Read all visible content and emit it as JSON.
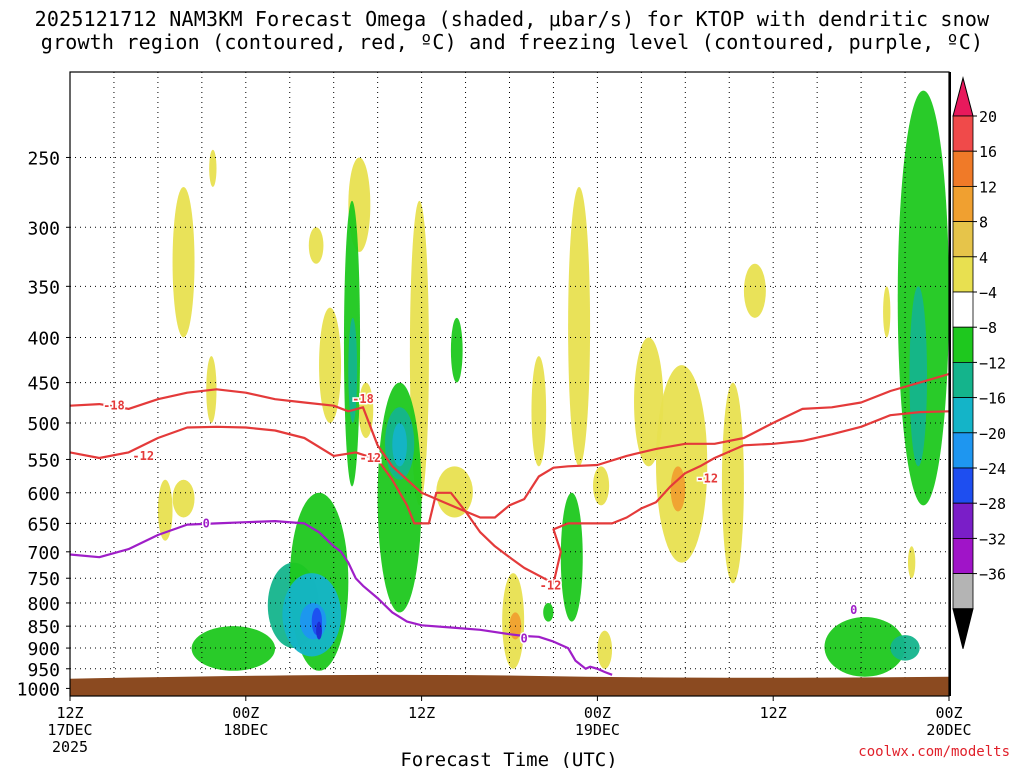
{
  "title": {
    "line1": "2025121712 NAM3KM Forecast Omega (shaded, μbar/s) for KTOP with dendritic snow",
    "line2": "growth region (contoured, red, ºC) and freezing level (contoured, purple, ºC)"
  },
  "credit": "coolwx.com/modelts",
  "chart_data": {
    "type": "heatmap",
    "title": "2025121712 NAM3KM Forecast Omega (shaded, μbar/s) for KTOP with dendritic snow growth region (contoured, red, ºC) and freezing level (contoured, purple, ºC)",
    "xlabel": "Forecast Time (UTC)",
    "ylabel": "",
    "x_range_hours": [
      0,
      60
    ],
    "y_scale": "log-pressure",
    "y_range_hPa": [
      1020,
      200
    ],
    "y_ticks": [
      "250",
      "300",
      "350",
      "400",
      "450",
      "500",
      "550",
      "600",
      "650",
      "700",
      "750",
      "800",
      "850",
      "900",
      "950",
      "1000"
    ],
    "x_ticks": [
      {
        "hour": 0,
        "line1": "12Z",
        "line2": "17DEC",
        "line3": "2025"
      },
      {
        "hour": 12,
        "line1": "00Z",
        "line2": "18DEC",
        "line3": ""
      },
      {
        "hour": 24,
        "line1": "12Z",
        "line2": "",
        "line3": ""
      },
      {
        "hour": 36,
        "line1": "00Z",
        "line2": "19DEC",
        "line3": ""
      },
      {
        "hour": 48,
        "line1": "12Z",
        "line2": "",
        "line3": ""
      },
      {
        "hour": 60,
        "line1": "00Z",
        "line2": "20DEC",
        "line3": ""
      }
    ],
    "grid": true,
    "colorbar": {
      "labels": [
        "20",
        "16",
        "12",
        "8",
        "4",
        "−4",
        "−8",
        "−12",
        "−16",
        "−20",
        "−24",
        "−28",
        "−32",
        "−36"
      ],
      "colors": [
        "#e8195c",
        "#f04a4a",
        "#f07a28",
        "#f0a030",
        "#e6c44a",
        "#e8e050",
        "#ffffff",
        "#1ec81e",
        "#14b48c",
        "#14b4c8",
        "#1e96f0",
        "#1e4ef0",
        "#7a1ec8",
        "#a014c8",
        "#b4b4b4",
        "#000000"
      ]
    },
    "omega_areas": [
      {
        "level": 4,
        "t": [
          6,
          7
        ],
        "p": [
          580,
          680
        ]
      },
      {
        "level": 4,
        "t": [
          7,
          8.5
        ],
        "p": [
          580,
          640
        ]
      },
      {
        "level": 4,
        "t": [
          7,
          8.5
        ],
        "p": [
          270,
          400
        ]
      },
      {
        "level": 4,
        "t": [
          9.5,
          10
        ],
        "p": [
          245,
          270
        ]
      },
      {
        "level": 4,
        "t": [
          9.3,
          10
        ],
        "p": [
          420,
          500
        ]
      },
      {
        "level": 4,
        "t": [
          16.3,
          17.3
        ],
        "p": [
          300,
          330
        ]
      },
      {
        "level": 4,
        "t": [
          17,
          18.5
        ],
        "p": [
          370,
          500
        ]
      },
      {
        "level": 4,
        "t": [
          19,
          20.5
        ],
        "p": [
          250,
          320
        ]
      },
      {
        "level": 4,
        "t": [
          19.7,
          20.7
        ],
        "p": [
          450,
          520
        ]
      },
      {
        "level": 4,
        "t": [
          23.2,
          24.5
        ],
        "p": [
          280,
          620
        ]
      },
      {
        "level": 4,
        "t": [
          25,
          27.5
        ],
        "p": [
          560,
          640
        ]
      },
      {
        "level": 4,
        "t": [
          29.5,
          31
        ],
        "p": [
          740,
          950
        ]
      },
      {
        "level": 8,
        "t": [
          30,
          30.8
        ],
        "p": [
          820,
          880
        ]
      },
      {
        "level": 4,
        "t": [
          31.5,
          32.5
        ],
        "p": [
          420,
          560
        ]
      },
      {
        "level": 4,
        "t": [
          34,
          35.5
        ],
        "p": [
          270,
          560
        ]
      },
      {
        "level": 4,
        "t": [
          35.7,
          36.8
        ],
        "p": [
          560,
          620
        ]
      },
      {
        "level": 4,
        "t": [
          36,
          37
        ],
        "p": [
          860,
          950
        ]
      },
      {
        "level": 4,
        "t": [
          38.5,
          40.5
        ],
        "p": [
          400,
          560
        ]
      },
      {
        "level": 4,
        "t": [
          40,
          43.5
        ],
        "p": [
          430,
          720
        ]
      },
      {
        "level": 8,
        "t": [
          41,
          42
        ],
        "p": [
          560,
          630
        ]
      },
      {
        "level": 4,
        "t": [
          44.5,
          46
        ],
        "p": [
          450,
          760
        ]
      },
      {
        "level": 4,
        "t": [
          46,
          47.5
        ],
        "p": [
          330,
          380
        ]
      },
      {
        "level": 4,
        "t": [
          55.5,
          56
        ],
        "p": [
          350,
          400
        ]
      },
      {
        "level": 4,
        "t": [
          57.2,
          57.7
        ],
        "p": [
          690,
          750
        ]
      },
      {
        "level": -4,
        "t": [
          8.3,
          14
        ],
        "p": [
          850,
          955
        ]
      },
      {
        "level": -8,
        "t": [
          13.5,
          17
        ],
        "p": [
          720,
          900
        ]
      },
      {
        "level": -4,
        "t": [
          15,
          19
        ],
        "p": [
          600,
          955
        ]
      },
      {
        "level": -4,
        "t": [
          18.7,
          19.8
        ],
        "p": [
          280,
          590
        ]
      },
      {
        "level": -8,
        "t": [
          19,
          19.6
        ],
        "p": [
          380,
          500
        ]
      },
      {
        "level": -12,
        "t": [
          14.5,
          18.5
        ],
        "p": [
          740,
          920
        ]
      },
      {
        "level": -16,
        "t": [
          15.7,
          17.5
        ],
        "p": [
          800,
          880
        ]
      },
      {
        "level": -20,
        "t": [
          16.5,
          17.2
        ],
        "p": [
          810,
          870
        ]
      },
      {
        "level": -24,
        "t": [
          16.8,
          17.2
        ],
        "p": [
          840,
          880
        ]
      },
      {
        "level": -4,
        "t": [
          21,
          24
        ],
        "p": [
          450,
          820
        ]
      },
      {
        "level": -8,
        "t": [
          21.5,
          23.5
        ],
        "p": [
          480,
          580
        ]
      },
      {
        "level": -12,
        "t": [
          22,
          23
        ],
        "p": [
          500,
          560
        ]
      },
      {
        "level": -4,
        "t": [
          26,
          26.8
        ],
        "p": [
          380,
          450
        ]
      },
      {
        "level": -4,
        "t": [
          32.3,
          33
        ],
        "p": [
          800,
          840
        ]
      },
      {
        "level": -4,
        "t": [
          33.5,
          35
        ],
        "p": [
          600,
          840
        ]
      },
      {
        "level": -4,
        "t": [
          51.5,
          57
        ],
        "p": [
          830,
          970
        ]
      },
      {
        "level": -8,
        "t": [
          56,
          58
        ],
        "p": [
          870,
          930
        ]
      },
      {
        "level": -4,
        "t": [
          56.5,
          60
        ],
        "p": [
          210,
          620
        ]
      },
      {
        "level": -8,
        "t": [
          57.3,
          58.5
        ],
        "p": [
          350,
          560
        ]
      }
    ],
    "dgz_minus12_lower": [
      [
        0,
        540
      ],
      [
        2,
        548
      ],
      [
        4,
        540
      ],
      [
        6,
        520
      ],
      [
        8,
        506
      ],
      [
        10,
        505
      ],
      [
        12,
        506
      ],
      [
        14,
        510
      ],
      [
        16,
        520
      ],
      [
        18,
        545
      ],
      [
        19.5,
        540
      ],
      [
        21,
        550
      ],
      [
        22,
        580
      ],
      [
        23,
        620
      ],
      [
        23.5,
        650
      ],
      [
        24.5,
        650
      ],
      [
        25,
        600
      ],
      [
        26,
        600
      ],
      [
        27,
        630
      ],
      [
        28,
        665
      ],
      [
        29,
        690
      ],
      [
        30,
        710
      ],
      [
        31,
        730
      ],
      [
        33,
        760
      ],
      [
        33.5,
        700
      ],
      [
        33,
        660
      ],
      [
        34,
        650
      ],
      [
        35,
        650
      ],
      [
        37,
        650
      ],
      [
        38,
        640
      ],
      [
        39,
        625
      ],
      [
        40,
        615
      ],
      [
        41,
        590
      ],
      [
        42,
        570
      ],
      [
        43,
        560
      ],
      [
        44,
        548
      ],
      [
        46,
        530
      ],
      [
        48,
        528
      ],
      [
        50,
        524
      ],
      [
        52,
        515
      ],
      [
        54,
        505
      ],
      [
        56,
        490
      ],
      [
        58,
        486
      ],
      [
        60,
        485
      ]
    ],
    "dgz_minus18_upper": [
      [
        0,
        478
      ],
      [
        2,
        476
      ],
      [
        4,
        482
      ],
      [
        6,
        470
      ],
      [
        8,
        462
      ],
      [
        10,
        458
      ],
      [
        12,
        462
      ],
      [
        14,
        470
      ],
      [
        16,
        474
      ],
      [
        18,
        478
      ],
      [
        19,
        485
      ],
      [
        20,
        480
      ],
      [
        21,
        530
      ],
      [
        22,
        560
      ],
      [
        24,
        600
      ],
      [
        26,
        620
      ],
      [
        28,
        640
      ],
      [
        29,
        640
      ],
      [
        30,
        620
      ],
      [
        31,
        610
      ],
      [
        32,
        575
      ],
      [
        33,
        562
      ],
      [
        34,
        560
      ],
      [
        36,
        558
      ],
      [
        38,
        545
      ],
      [
        40,
        535
      ],
      [
        42,
        528
      ],
      [
        44,
        528
      ],
      [
        46,
        520
      ],
      [
        48,
        500
      ],
      [
        50,
        482
      ],
      [
        52,
        480
      ],
      [
        54,
        474
      ],
      [
        56,
        460
      ],
      [
        58,
        450
      ],
      [
        60,
        440
      ]
    ],
    "freezing_level_0C": [
      [
        0,
        705
      ],
      [
        2,
        710
      ],
      [
        4,
        695
      ],
      [
        6,
        670
      ],
      [
        8,
        652
      ],
      [
        10,
        650
      ],
      [
        12,
        648
      ],
      [
        14,
        646
      ],
      [
        16,
        650
      ],
      [
        17,
        665
      ],
      [
        18,
        690
      ],
      [
        18.5,
        700
      ],
      [
        19,
        720
      ],
      [
        19.5,
        750
      ],
      [
        20,
        765
      ],
      [
        21,
        790
      ],
      [
        22,
        820
      ],
      [
        23,
        840
      ],
      [
        24,
        848
      ],
      [
        26,
        853
      ],
      [
        28,
        858
      ],
      [
        30,
        868
      ],
      [
        31,
        872
      ],
      [
        32,
        874
      ],
      [
        33,
        885
      ],
      [
        34,
        900
      ],
      [
        34.5,
        930
      ],
      [
        35.2,
        950
      ],
      [
        35.5,
        945
      ],
      [
        36,
        950
      ],
      [
        36.5,
        958
      ],
      [
        37,
        965
      ]
    ],
    "contour_labels": [
      {
        "text": "-18",
        "t": 3,
        "p": 478,
        "color": "#e43a3a"
      },
      {
        "text": "-18",
        "t": 20,
        "p": 470,
        "color": "#e43a3a"
      },
      {
        "text": "-12",
        "t": 5,
        "p": 545,
        "color": "#e43a3a"
      },
      {
        "text": "-12",
        "t": 20.5,
        "p": 548,
        "color": "#e43a3a"
      },
      {
        "text": "-12",
        "t": 32.8,
        "p": 764,
        "color": "#e43a3a"
      },
      {
        "text": "-12",
        "t": 43.5,
        "p": 578,
        "color": "#e43a3a"
      },
      {
        "text": "0",
        "t": 9.3,
        "p": 650,
        "color": "#9f1ec8"
      },
      {
        "text": "0",
        "t": 31,
        "p": 878,
        "color": "#9f1ec8"
      },
      {
        "text": "0",
        "t": 53.5,
        "p": 815,
        "color": "#9f1ec8"
      }
    ],
    "ground_band": {
      "color": "#8b4a20"
    }
  }
}
